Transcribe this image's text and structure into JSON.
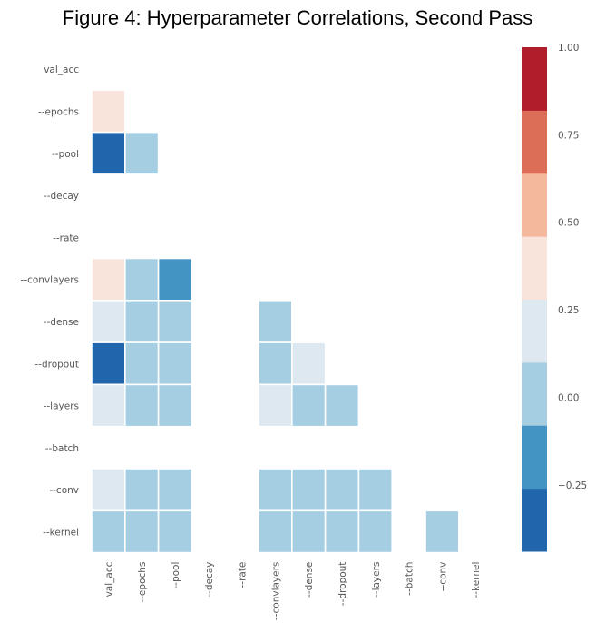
{
  "chart_data": {
    "type": "heatmap",
    "title": "Figure 4: Hyperparameter Correlations, Second Pass",
    "xlabel": "",
    "ylabel": "",
    "row_labels": [
      "val_acc",
      "--epochs",
      "--pool",
      "--decay",
      "--rate",
      "--convlayers",
      "--dense",
      "--dropout",
      "--layers",
      "--batch",
      "--conv",
      "--kernel"
    ],
    "col_labels": [
      "val_acc",
      "--epochs",
      "--pool",
      "--decay",
      "--rate",
      "--convlayers",
      "--dense",
      "--dropout",
      "--layers",
      "--batch",
      "--conv",
      "--kernel"
    ],
    "mask": "lower-triangle (upper triangle and diagonal hidden)",
    "values": [
      [
        null,
        null,
        null,
        null,
        null,
        null,
        null,
        null,
        null,
        null,
        null,
        null
      ],
      [
        0.45,
        null,
        null,
        null,
        null,
        null,
        null,
        null,
        null,
        null,
        null,
        null
      ],
      [
        -0.4,
        0.05,
        null,
        null,
        null,
        null,
        null,
        null,
        null,
        null,
        null,
        null
      ],
      [
        null,
        null,
        null,
        null,
        null,
        null,
        null,
        null,
        null,
        null,
        null,
        null
      ],
      [
        null,
        null,
        null,
        null,
        null,
        null,
        null,
        null,
        null,
        null,
        null,
        null
      ],
      [
        0.3,
        0.05,
        -0.2,
        null,
        null,
        null,
        null,
        null,
        null,
        null,
        null,
        null
      ],
      [
        0.2,
        0.05,
        0.05,
        null,
        null,
        0.05,
        null,
        null,
        null,
        null,
        null,
        null
      ],
      [
        -0.4,
        0.05,
        0.05,
        null,
        null,
        0.05,
        0.2,
        null,
        null,
        null,
        null,
        null
      ],
      [
        0.2,
        0.05,
        0.05,
        null,
        null,
        0.2,
        0.05,
        0.05,
        null,
        null,
        null,
        null
      ],
      [
        null,
        null,
        null,
        null,
        null,
        null,
        null,
        null,
        null,
        null,
        null,
        null
      ],
      [
        0.2,
        0.05,
        0.05,
        null,
        null,
        0.05,
        0.05,
        0.05,
        0.05,
        null,
        null,
        null
      ],
      [
        0.05,
        0.05,
        0.05,
        null,
        null,
        0.05,
        0.05,
        0.05,
        0.05,
        null,
        0.05,
        null
      ]
    ],
    "colorbar": {
      "vmin": -0.44,
      "vmax": 1.0,
      "ticks": [
        "1.00",
        "0.75",
        "0.50",
        "0.25",
        "0.00",
        "−0.25"
      ],
      "tick_values": [
        1.0,
        0.75,
        0.5,
        0.25,
        0.0,
        -0.25
      ],
      "bins": [
        {
          "from": -0.44,
          "to": -0.26,
          "color": "#2166ac"
        },
        {
          "from": -0.26,
          "to": -0.08,
          "color": "#4393c3"
        },
        {
          "from": -0.08,
          "to": 0.1,
          "color": "#a6cee3"
        },
        {
          "from": 0.1,
          "to": 0.28,
          "color": "#dde8f0"
        },
        {
          "from": 0.28,
          "to": 0.46,
          "color": "#f9e4dc"
        },
        {
          "from": 0.46,
          "to": 0.64,
          "color": "#f4b89c"
        },
        {
          "from": 0.64,
          "to": 0.82,
          "color": "#dc6d57"
        },
        {
          "from": 0.82,
          "to": 1.0,
          "color": "#b21d2c"
        }
      ]
    },
    "grid": false,
    "cell_border_color": "#ffffff"
  }
}
